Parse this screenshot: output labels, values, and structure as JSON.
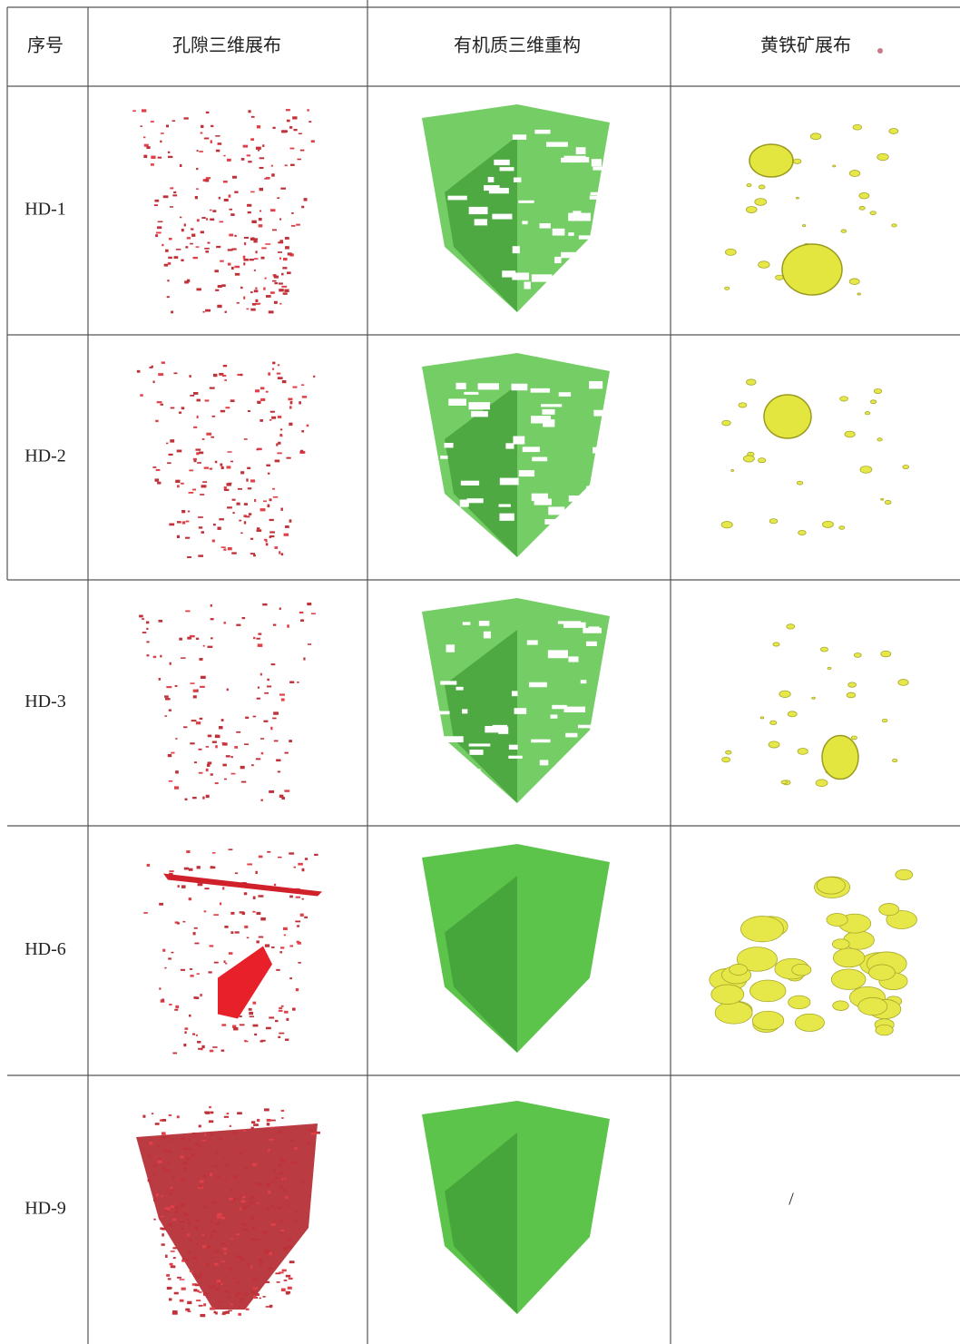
{
  "table": {
    "header": [
      "序号",
      "孔隙三维展布",
      "有机质三维重构",
      "黄铁矿展布"
    ],
    "rows": [
      {
        "id": "HD-1"
      },
      {
        "id": "HD-2"
      },
      {
        "id": "HD-3"
      },
      {
        "id": "HD-6"
      },
      {
        "id": "HD-9",
        "pyrite": "/"
      }
    ]
  }
}
